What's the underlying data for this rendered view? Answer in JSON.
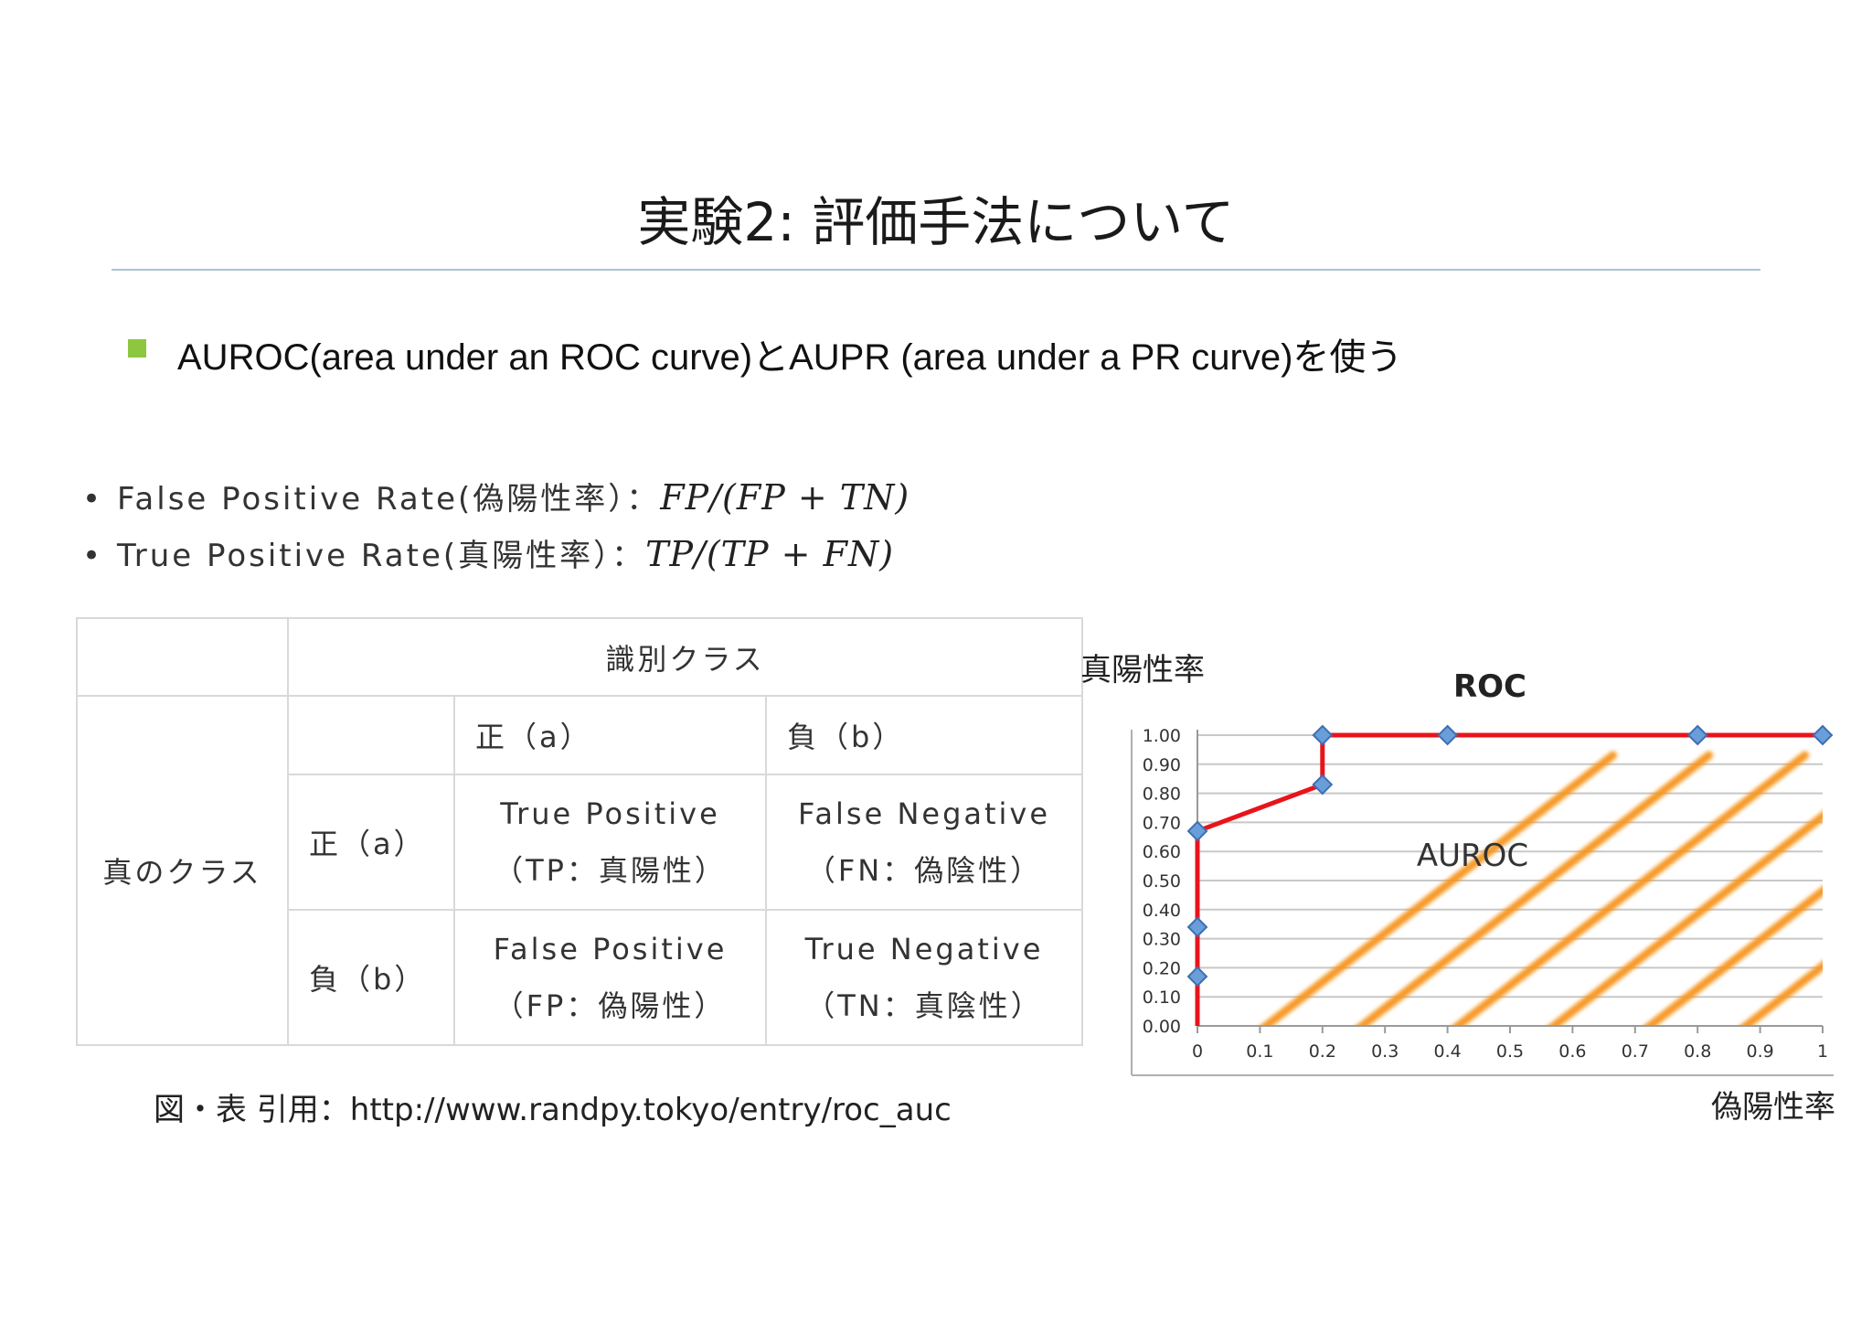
{
  "slide": {
    "title": "実験2: 評価手法について",
    "bullet": "AUROC(area under an ROC curve)とAUPR (area under a PR curve)を使う",
    "fpr_label": "False Positive Rate(偽陽性率）：",
    "fpr_formula": "FP/(FP + TN)",
    "tpr_label": "True Positive Rate(真陽性率）：",
    "tpr_formula": "TP/(TP + FN)",
    "caption": "図・表 引用：http://www.randpy.tokyo/entry/roc_auc"
  },
  "matrix": {
    "predicted_header": "識別クラス",
    "actual_header": "真のクラス",
    "pos_label": "正（a）",
    "neg_label": "負（b）",
    "tp_en": "True Positive",
    "tp_ja": "（TP：真陽性）",
    "fn_en": "False Negative",
    "fn_ja": "（FN：偽陰性）",
    "fp_en": "False Positive",
    "fp_ja": "（FP：偽陽性）",
    "tn_en": "True Negative",
    "tn_ja": "（TN：真陰性）"
  },
  "chart_data": {
    "type": "line",
    "title": "ROC",
    "xlabel": "偽陽性率",
    "ylabel": "真陽性率",
    "area_label": "AUROC",
    "x_ticks": [
      "0",
      "0.1",
      "0.2",
      "0.3",
      "0.4",
      "0.5",
      "0.6",
      "0.7",
      "0.8",
      "0.9",
      "1"
    ],
    "y_ticks": [
      "0.00",
      "0.10",
      "0.20",
      "0.30",
      "0.40",
      "0.50",
      "0.60",
      "0.70",
      "0.80",
      "0.90",
      "1.00"
    ],
    "xlim": [
      0,
      1
    ],
    "ylim": [
      0,
      1
    ],
    "grid": "horizontal",
    "series": [
      {
        "points": [
          {
            "x": 0,
            "y": 0
          },
          {
            "x": 0,
            "y": 0.17
          },
          {
            "x": 0,
            "y": 0.34
          },
          {
            "x": 0,
            "y": 0.67
          },
          {
            "x": 0.2,
            "y": 0.83
          },
          {
            "x": 0.2,
            "y": 1.0
          },
          {
            "x": 0.4,
            "y": 1.0
          },
          {
            "x": 0.8,
            "y": 1.0
          },
          {
            "x": 1.0,
            "y": 1.0
          }
        ],
        "markers": [
          {
            "x": 0,
            "y": 0.17
          },
          {
            "x": 0,
            "y": 0.34
          },
          {
            "x": 0,
            "y": 0.67
          },
          {
            "x": 0.2,
            "y": 0.83
          },
          {
            "x": 0.2,
            "y": 1.0
          },
          {
            "x": 0.4,
            "y": 1.0
          },
          {
            "x": 0.8,
            "y": 1.0
          },
          {
            "x": 1.0,
            "y": 1.0
          }
        ]
      }
    ],
    "colors": {
      "curve": "#e8141b",
      "marker": "#6a9ed8",
      "hatch": "#f7941d",
      "grid": "#c8c8c8"
    }
  }
}
